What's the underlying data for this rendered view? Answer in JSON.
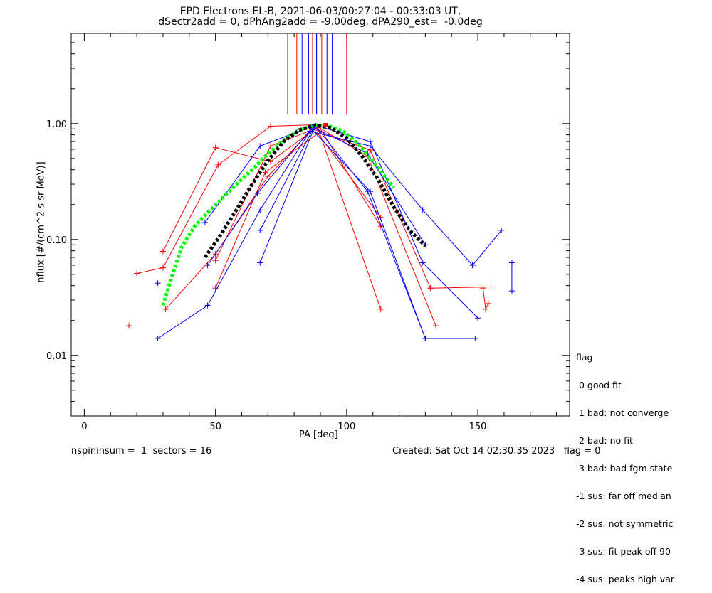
{
  "header": {
    "title_line1": "EPD Electrons EL-B, 2021-06-03/00:27:04 - 00:33:03 UT,",
    "title_line2": "dSectr2add = 0, dPhAng2add = -9.00deg, dPA290_est=  -0.0deg"
  },
  "footer": {
    "left": "nspininsum =  1  sectors = 16",
    "right": "Created: Sat Oct 14 02:30:35 2023   flag = 0"
  },
  "legend": {
    "title": "flag",
    "items": [
      " 0 good fit",
      " 1 bad: not converge",
      " 2 bad: no fit",
      " 3 bad: bad fgm state",
      "-1 sus: far off median",
      "-2 sus: not symmetric",
      "-3 sus: fit peak off 90",
      "-4 sus: peaks high var"
    ]
  },
  "colors": {
    "red": "#ff0000",
    "blue": "#0000ff",
    "green": "#00ff00",
    "black": "#000000"
  },
  "chart_data": {
    "type": "line",
    "title": "EPD Electrons EL-B, 2021-06-03/00:27:04 - 00:33:03 UT,",
    "xlabel": "PA [deg]",
    "ylabel": "nflux [#/(cm^2 s sr MeV)]",
    "xlim": [
      -5,
      185
    ],
    "ylim": [
      0.003,
      6
    ],
    "yscale": "log",
    "xticks": [
      0,
      50,
      100,
      150
    ],
    "xtick_labels": [
      "0",
      "50",
      "100",
      "150"
    ],
    "yticks": [
      0.01,
      0.1,
      1.0
    ],
    "ytick_labels": [
      "0.01",
      "0.10",
      "1.00"
    ],
    "series": [
      {
        "color": "red",
        "x": [
          20,
          30,
          51,
          71,
          89,
          113
        ],
        "y": [
          0.051,
          0.057,
          0.44,
          0.95,
          0.98,
          0.13
        ]
      },
      {
        "color": "red",
        "x": [
          30,
          50,
          71,
          89,
          108,
          134
        ],
        "y": [
          0.079,
          0.62,
          0.47,
          0.94,
          0.52,
          0.018
        ]
      },
      {
        "color": "red",
        "x": [
          31,
          50,
          70,
          87,
          109,
          132
        ],
        "y": [
          0.025,
          0.075,
          0.35,
          0.9,
          0.59,
          0.038
        ]
      },
      {
        "color": "red",
        "x": [
          50,
          71,
          89,
          113
        ],
        "y": [
          0.066,
          0.64,
          0.92,
          0.025
        ]
      },
      {
        "color": "red",
        "x": [
          50,
          69,
          89,
          113
        ],
        "y": [
          0.038,
          0.38,
          0.82,
          0.155
        ]
      },
      {
        "color": "red",
        "x": [
          17
        ],
        "y": [
          0.018
        ]
      },
      {
        "color": "red",
        "x": [
          152,
          153,
          154
        ],
        "y": [
          0.038,
          0.025,
          0.028
        ]
      },
      {
        "color": "red",
        "x": [
          132,
          155
        ],
        "y": [
          0.038,
          0.039
        ]
      },
      {
        "color": "blue",
        "x": [
          28,
          47,
          67,
          86,
          109,
          129,
          148
        ],
        "y": [
          0.014,
          0.027,
          0.18,
          0.86,
          0.64,
          0.18,
          0.06
        ]
      },
      {
        "color": "blue",
        "x": [
          46,
          67,
          88,
          109,
          129,
          150
        ],
        "y": [
          0.14,
          0.64,
          0.97,
          0.7,
          0.063,
          0.021
        ]
      },
      {
        "color": "blue",
        "x": [
          47,
          66,
          87,
          108,
          130
        ],
        "y": [
          0.06,
          0.25,
          0.93,
          0.55,
          0.09
        ]
      },
      {
        "color": "blue",
        "x": [
          67,
          87,
          109,
          130
        ],
        "y": [
          0.12,
          0.88,
          0.26,
          0.014
        ]
      },
      {
        "color": "blue",
        "x": [
          67,
          88,
          108,
          130,
          149
        ],
        "y": [
          0.063,
          0.96,
          0.26,
          0.014,
          0.014
        ]
      },
      {
        "color": "blue",
        "x": [
          148,
          159
        ],
        "y": [
          0.06,
          0.12
        ]
      },
      {
        "color": "blue",
        "x": [
          28
        ],
        "y": [
          0.042
        ]
      },
      {
        "color": "blue",
        "x": [
          163,
          163
        ],
        "y": [
          0.063,
          0.036
        ]
      },
      {
        "color": "green",
        "style": "dashed-thick",
        "x": [
          30,
          33,
          37,
          42,
          47,
          52,
          58,
          64,
          70,
          76,
          82,
          88,
          93,
          99,
          104,
          108,
          112,
          115,
          118
        ],
        "y": [
          0.027,
          0.045,
          0.085,
          0.13,
          0.17,
          0.22,
          0.3,
          0.4,
          0.55,
          0.72,
          0.88,
          0.97,
          0.96,
          0.85,
          0.68,
          0.53,
          0.42,
          0.34,
          0.28
        ]
      },
      {
        "color": "black",
        "style": "dashed-thick",
        "x": [
          46,
          52,
          58,
          64,
          70,
          76,
          82,
          88,
          94,
          100,
          106,
          112,
          118,
          124,
          130
        ],
        "y": [
          0.07,
          0.11,
          0.18,
          0.3,
          0.48,
          0.7,
          0.88,
          0.97,
          0.92,
          0.75,
          0.52,
          0.33,
          0.19,
          0.12,
          0.088
        ]
      }
    ],
    "vertical_lines": [
      {
        "color": "red",
        "x": [
          77.5,
          81,
          87,
          89,
          90.5,
          100
        ]
      },
      {
        "color": "blue",
        "x": [
          83,
          85.5,
          88.5,
          92.5,
          94.5
        ]
      }
    ],
    "peak_marker": {
      "color": "red",
      "x": 92,
      "y": 0.97
    }
  }
}
